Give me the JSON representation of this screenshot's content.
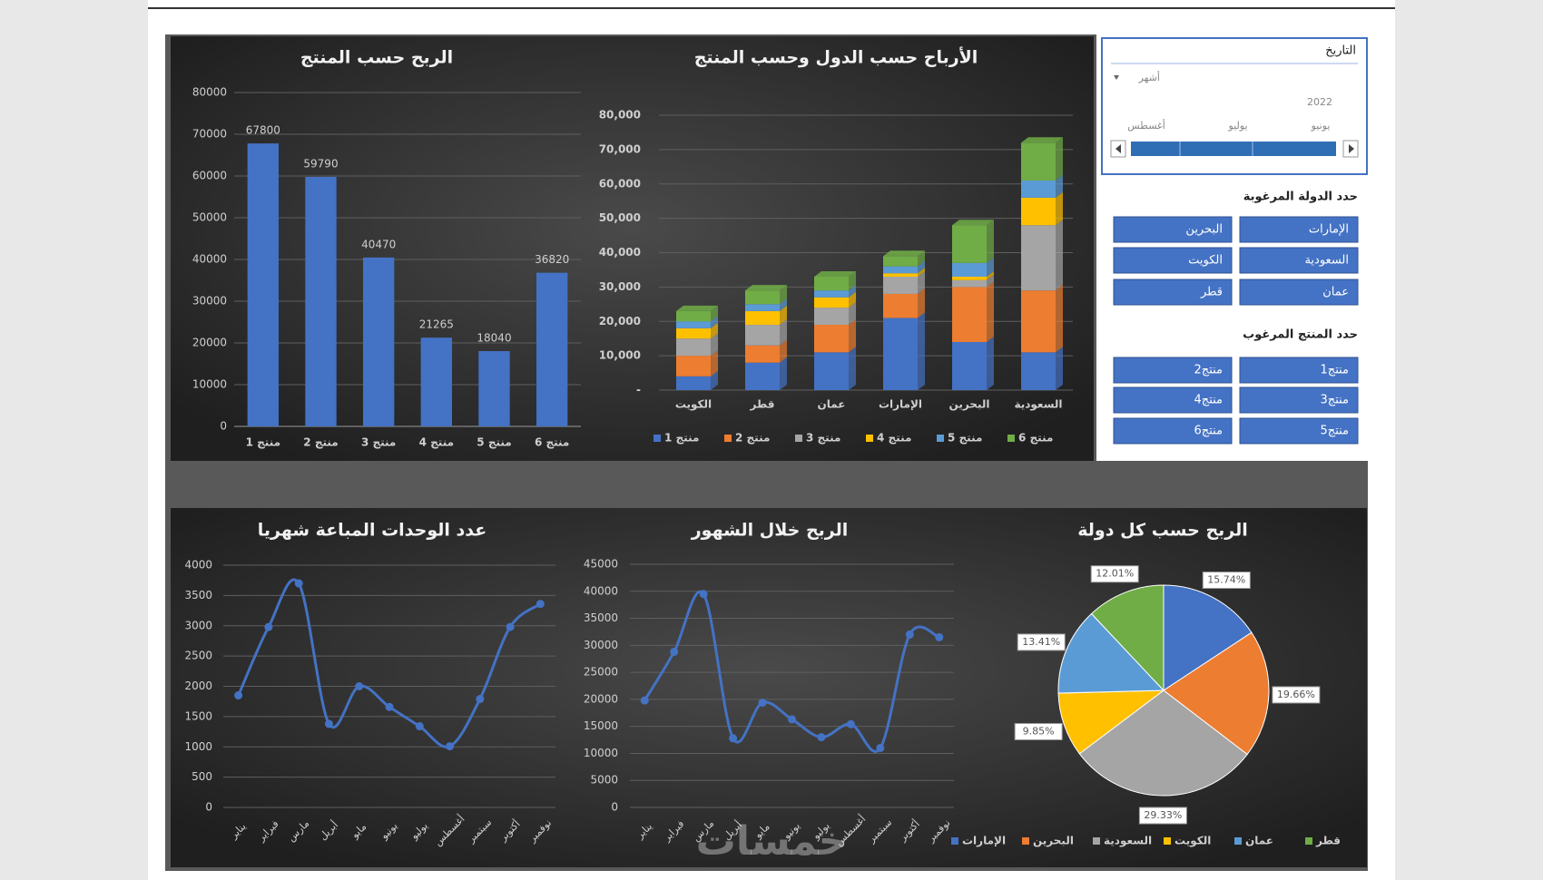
{
  "chart_data": [
    {
      "type": "bar",
      "title": "الربح حسب المنتج",
      "categories": [
        "منتج 1",
        "منتج 2",
        "منتج 3",
        "منتج 4",
        "منتج 5",
        "منتج 6"
      ],
      "values": [
        67800,
        59790,
        40470,
        21265,
        18040,
        36820
      ],
      "color": "#4472c4",
      "ylim": [
        0,
        80000
      ],
      "yticks": [
        0,
        10000,
        20000,
        30000,
        40000,
        50000,
        60000,
        70000,
        80000
      ],
      "grid": true
    },
    {
      "type": "stacked_bar",
      "title": "الأرباح حسب الدول وحسب المنتج",
      "categories": [
        "الكويت",
        "قطر",
        "عمان",
        "الإمارات",
        "البحرين",
        "السعودية"
      ],
      "series": [
        {
          "name": "منتج 1",
          "color": "#4472c4",
          "values": [
            4000,
            8000,
            11000,
            21000,
            14000,
            11000
          ]
        },
        {
          "name": "منتج 2",
          "color": "#ed7d31",
          "values": [
            6000,
            5000,
            8000,
            7000,
            16000,
            18000
          ]
        },
        {
          "name": "منتج 3",
          "color": "#a5a5a5",
          "values": [
            5000,
            6000,
            5000,
            5000,
            2000,
            19000
          ]
        },
        {
          "name": "منتج 4",
          "color": "#ffc000",
          "values": [
            3000,
            4000,
            3000,
            1000,
            1000,
            8000
          ]
        },
        {
          "name": "منتج 5",
          "color": "#5b9bd5",
          "values": [
            2000,
            2000,
            2000,
            2000,
            4000,
            5000
          ]
        },
        {
          "name": "منتج 6",
          "color": "#70ad47",
          "values": [
            3000,
            4000,
            4000,
            3000,
            11000,
            11000
          ]
        }
      ],
      "ylim": [
        0,
        80000
      ],
      "yticks": [
        {
          "value": 0,
          "label": "-"
        },
        {
          "value": 10000,
          "label": "10,000"
        },
        {
          "value": 20000,
          "label": "20,000"
        },
        {
          "value": 30000,
          "label": "30,000"
        },
        {
          "value": 40000,
          "label": "40,000"
        },
        {
          "value": 50000,
          "label": "50,000"
        },
        {
          "value": 60000,
          "label": "60,000"
        },
        {
          "value": 70000,
          "label": "70,000"
        },
        {
          "value": 80000,
          "label": "80,000"
        }
      ],
      "grid": true
    },
    {
      "type": "line",
      "title": "عدد الوحدات المباعة شهريا",
      "categories": [
        "يناير",
        "فبراير",
        "مارس",
        "أبريل",
        "مايو",
        "يونيو",
        "يوليو",
        "أغسطس",
        "سبتمبر",
        "أكتوبر",
        "نوفمبر"
      ],
      "values": [
        1850,
        2980,
        3700,
        1380,
        2000,
        1660,
        1340,
        1010,
        1790,
        2980,
        3360
      ],
      "color": "#4472c4",
      "ylim": [
        0,
        4000
      ],
      "yticks": [
        0,
        500,
        1000,
        1500,
        2000,
        2500,
        3000,
        3500,
        4000
      ],
      "grid": true
    },
    {
      "type": "line",
      "title": "الربح خلال الشهور",
      "categories": [
        "يناير",
        "فبراير",
        "مارس",
        "أبريل",
        "مايو",
        "يونيو",
        "يوليو",
        "أغسطس",
        "سبتمبر",
        "أكتوبر",
        "نوفمبر"
      ],
      "values": [
        19800,
        28800,
        39500,
        12800,
        19400,
        16300,
        13000,
        15400,
        11000,
        32000,
        31500
      ],
      "color": "#4472c4",
      "ylim": [
        0,
        45000
      ],
      "yticks": [
        0,
        5000,
        10000,
        15000,
        20000,
        25000,
        30000,
        35000,
        40000,
        45000
      ],
      "grid": true
    },
    {
      "type": "pie",
      "title": "الربح حسب كل دولة",
      "categories": [
        "الإمارات",
        "البحرين",
        "السعودية",
        "الكويت",
        "عمان",
        "قطر"
      ],
      "values": [
        15.74,
        19.66,
        29.33,
        9.85,
        13.41,
        12.01
      ],
      "value_labels": [
        "15.74%",
        "19.66%",
        "29.33%",
        "9.85%",
        "13.41%",
        "12.01%"
      ],
      "colors": [
        "#4472c4",
        "#ed7d31",
        "#a5a5a5",
        "#ffc000",
        "#5b9bd5",
        "#70ad47"
      ]
    }
  ],
  "slicers": {
    "date": {
      "title": "التاريخ",
      "period": "أشهر",
      "year": "2022",
      "months": [
        "يونيو",
        "يوليو",
        "أغسطس"
      ]
    },
    "country": {
      "title": "حدد الدولة المرغوبة",
      "items": [
        "الإمارات",
        "البحرين",
        "السعودية",
        "الكويت",
        "عمان",
        "قطر"
      ]
    },
    "product": {
      "title": "حدد المنتج المرغوب",
      "items": [
        "منتج1",
        "منتج2",
        "منتج3",
        "منتج4",
        "منتج5",
        "منتج6"
      ]
    }
  },
  "watermark": "خمسات"
}
